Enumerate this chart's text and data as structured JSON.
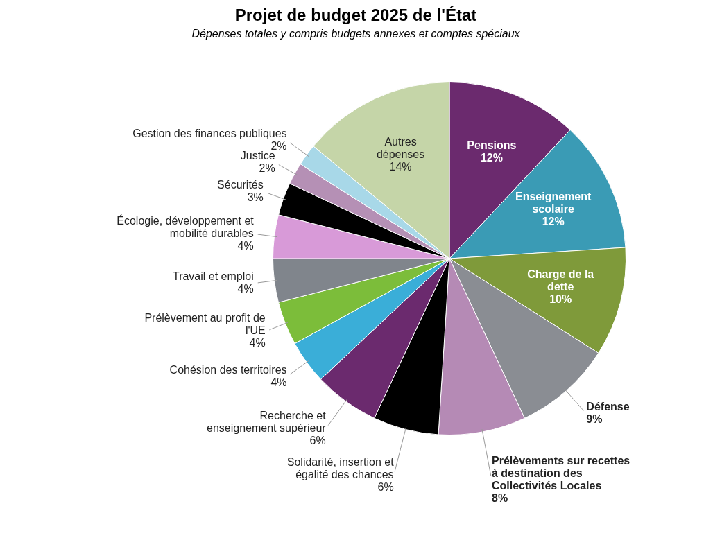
{
  "chart_data": {
    "type": "pie",
    "title": "Projet de budget 2025 de l'État",
    "subtitle": "Dépenses totales y compris budgets annexes et comptes spéciaux",
    "categories": [
      "Pensions",
      "Enseignement scolaire",
      "Charge de la dette",
      "Défense",
      "Prélèvements sur recettes à destination des Collectivités Locales",
      "Solidarité, insertion et égalité des chances",
      "Recherche et enseignement supérieur",
      "Cohésion des territoires",
      "Prélèvement au profit de l'UE",
      "Travail et emploi",
      "Écologie, développement et mobilité durables",
      "Sécurités",
      "Justice",
      "Gestion des finances publiques",
      "Autres dépenses"
    ],
    "values": [
      12,
      12,
      10,
      9,
      8,
      6,
      6,
      4,
      4,
      4,
      4,
      3,
      2,
      2,
      14
    ],
    "value_labels": [
      "12%",
      "12%",
      "10%",
      "9%",
      "8%",
      "6%",
      "6%",
      "4%",
      "4%",
      "4%",
      "4%",
      "3%",
      "2%",
      "2%",
      "14%"
    ],
    "colors": [
      "#6b2a6e",
      "#3a9bb5",
      "#7f9a3a",
      "#8a8d93",
      "#b58ab5",
      "#000000",
      "#6b2a6e",
      "#3aaed8",
      "#7cbd3a",
      "#80858c",
      "#d89ad8",
      "#000000",
      "#b590b5",
      "#a8d8e8",
      "#c5d5a8"
    ],
    "legend": false
  }
}
